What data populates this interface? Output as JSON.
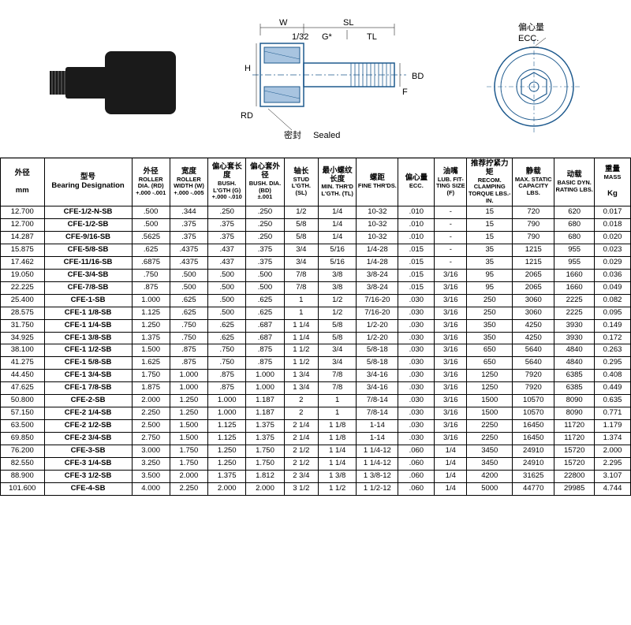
{
  "diagram": {
    "seal_label_cn": "密封",
    "seal_label_en": "Sealed",
    "ecc_label_cn": "偏心量",
    "ecc_label_en": "ECC.",
    "dims": {
      "W": "W",
      "SL": "SL",
      "G": "G*",
      "TL": "TL",
      "H": "H",
      "RD": "RD",
      "F": "F",
      "BD": "BD",
      "frac": "1/32"
    }
  },
  "headers": {
    "col0_cn": "外径",
    "col0_unit": "mm",
    "col1_cn": "型号",
    "col1_en": "Bearing Designation",
    "col2_cn": "外径",
    "col2_en": "ROLLER DIA. (RD)",
    "col2_tol": "+.000 -.001",
    "col3_cn": "宽度",
    "col3_en": "ROLLER WIDTH (W)",
    "col3_tol": "+.000 -.005",
    "col4_cn": "偏心套长度",
    "col4_en": "BUSH. L'GTH (G)",
    "col4_tol": "+.000 -.010",
    "col5_cn": "偏心套外径",
    "col5_en": "BUSH. DIA. (BD)",
    "col5_tol": "±.001",
    "col6_cn": "轴长",
    "col6_en": "STUD L'GTH. (SL)",
    "col7_cn": "最小螺纹长度",
    "col7_en": "MIN. THR'D L'GTH. (TL)",
    "col8_cn": "螺距",
    "col8_en": "FINE THR'DS.",
    "col9_cn": "偏心量",
    "col9_en": "ECC.",
    "col10_cn": "油嘴",
    "col10_en": "LUB. FIT-TING SIZE (F)",
    "col11_cn": "推荐拧紧力矩",
    "col11_en": "RECOM. CLAMPING TORQUE LBS.-IN.",
    "col12_cn": "静载",
    "col12_en": "MAX. STATIC CAPACITY LBS.",
    "col13_cn": "动载",
    "col13_en": "BASIC DYN. RATING LBS.",
    "col14_cn": "重量",
    "col14_en": "MASS",
    "col14_unit": "Kg"
  },
  "rows": [
    [
      "12.700",
      "CFE-1/2-N-SB",
      ".500",
      ".344",
      ".250",
      ".250",
      "1/2",
      "1/4",
      "10-32",
      ".010",
      "-",
      "15",
      "720",
      "620",
      "0.017"
    ],
    [
      "12.700",
      "CFE-1/2-SB",
      ".500",
      ".375",
      ".375",
      ".250",
      "5/8",
      "1/4",
      "10-32",
      ".010",
      "-",
      "15",
      "790",
      "680",
      "0.018"
    ],
    [
      "14.287",
      "CFE-9/16-SB",
      ".5625",
      ".375",
      ".375",
      ".250",
      "5/8",
      "1/4",
      "10-32",
      ".010",
      "-",
      "15",
      "790",
      "680",
      "0.020"
    ],
    [
      "15.875",
      "CFE-5/8-SB",
      ".625",
      ".4375",
      ".437",
      ".375",
      "3/4",
      "5/16",
      "1/4-28",
      ".015",
      "-",
      "35",
      "1215",
      "955",
      "0.023"
    ],
    [
      "17.462",
      "CFE-11/16-SB",
      ".6875",
      ".4375",
      ".437",
      ".375",
      "3/4",
      "5/16",
      "1/4-28",
      ".015",
      "-",
      "35",
      "1215",
      "955",
      "0.029"
    ],
    [
      "19.050",
      "CFE-3/4-SB",
      ".750",
      ".500",
      ".500",
      ".500",
      "7/8",
      "3/8",
      "3/8-24",
      ".015",
      "3/16",
      "95",
      "2065",
      "1660",
      "0.036"
    ],
    [
      "22.225",
      "CFE-7/8-SB",
      ".875",
      ".500",
      ".500",
      ".500",
      "7/8",
      "3/8",
      "3/8-24",
      ".015",
      "3/16",
      "95",
      "2065",
      "1660",
      "0.049"
    ],
    [
      "25.400",
      "CFE-1-SB",
      "1.000",
      ".625",
      ".500",
      ".625",
      "1",
      "1/2",
      "7/16-20",
      ".030",
      "3/16",
      "250",
      "3060",
      "2225",
      "0.082"
    ],
    [
      "28.575",
      "CFE-1 1/8-SB",
      "1.125",
      ".625",
      ".500",
      ".625",
      "1",
      "1/2",
      "7/16-20",
      ".030",
      "3/16",
      "250",
      "3060",
      "2225",
      "0.095"
    ],
    [
      "31.750",
      "CFE-1 1/4-SB",
      "1.250",
      ".750",
      ".625",
      ".687",
      "1 1/4",
      "5/8",
      "1/2-20",
      ".030",
      "3/16",
      "350",
      "4250",
      "3930",
      "0.149"
    ],
    [
      "34.925",
      "CFE-1 3/8-SB",
      "1.375",
      ".750",
      ".625",
      ".687",
      "1 1/4",
      "5/8",
      "1/2-20",
      ".030",
      "3/16",
      "350",
      "4250",
      "3930",
      "0.172"
    ],
    [
      "38.100",
      "CFE-1 1/2-SB",
      "1.500",
      ".875",
      ".750",
      ".875",
      "1 1/2",
      "3/4",
      "5/8-18",
      ".030",
      "3/16",
      "650",
      "5640",
      "4840",
      "0.263"
    ],
    [
      "41.275",
      "CFE-1 5/8-SB",
      "1.625",
      ".875",
      ".750",
      ".875",
      "1 1/2",
      "3/4",
      "5/8-18",
      ".030",
      "3/16",
      "650",
      "5640",
      "4840",
      "0.295"
    ],
    [
      "44.450",
      "CFE-1 3/4-SB",
      "1.750",
      "1.000",
      ".875",
      "1.000",
      "1 3/4",
      "7/8",
      "3/4-16",
      ".030",
      "3/16",
      "1250",
      "7920",
      "6385",
      "0.408"
    ],
    [
      "47.625",
      "CFE-1 7/8-SB",
      "1.875",
      "1.000",
      ".875",
      "1.000",
      "1 3/4",
      "7/8",
      "3/4-16",
      ".030",
      "3/16",
      "1250",
      "7920",
      "6385",
      "0.449"
    ],
    [
      "50.800",
      "CFE-2-SB",
      "2.000",
      "1.250",
      "1.000",
      "1.187",
      "2",
      "1",
      "7/8-14",
      ".030",
      "3/16",
      "1500",
      "10570",
      "8090",
      "0.635"
    ],
    [
      "57.150",
      "CFE-2 1/4-SB",
      "2.250",
      "1.250",
      "1.000",
      "1.187",
      "2",
      "1",
      "7/8-14",
      ".030",
      "3/16",
      "1500",
      "10570",
      "8090",
      "0.771"
    ],
    [
      "63.500",
      "CFE-2 1/2-SB",
      "2.500",
      "1.500",
      "1.125",
      "1.375",
      "2 1/4",
      "1 1/8",
      "1-14",
      ".030",
      "3/16",
      "2250",
      "16450",
      "11720",
      "1.179"
    ],
    [
      "69.850",
      "CFE-2 3/4-SB",
      "2.750",
      "1.500",
      "1.125",
      "1.375",
      "2 1/4",
      "1 1/8",
      "1-14",
      ".030",
      "3/16",
      "2250",
      "16450",
      "11720",
      "1.374"
    ],
    [
      "76.200",
      "CFE-3-SB",
      "3.000",
      "1.750",
      "1.250",
      "1.750",
      "2 1/2",
      "1 1/4",
      "1 1/4-12",
      ".060",
      "1/4",
      "3450",
      "24910",
      "15720",
      "2.000"
    ],
    [
      "82.550",
      "CFE-3 1/4-SB",
      "3.250",
      "1.750",
      "1.250",
      "1.750",
      "2 1/2",
      "1 1/4",
      "1 1/4-12",
      ".060",
      "1/4",
      "3450",
      "24910",
      "15720",
      "2.295"
    ],
    [
      "88.900",
      "CFE-3 1/2-SB",
      "3.500",
      "2.000",
      "1.375",
      "1.812",
      "2 3/4",
      "1 3/8",
      "1 3/8-12",
      ".060",
      "1/4",
      "4200",
      "31625",
      "22800",
      "3.107"
    ],
    [
      "101.600",
      "CFE-4-SB",
      "4.000",
      "2.250",
      "2.000",
      "2.000",
      "3 1/2",
      "1 1/2",
      "1 1/2-12",
      ".060",
      "1/4",
      "5000",
      "44770",
      "29985",
      "4.744"
    ]
  ]
}
